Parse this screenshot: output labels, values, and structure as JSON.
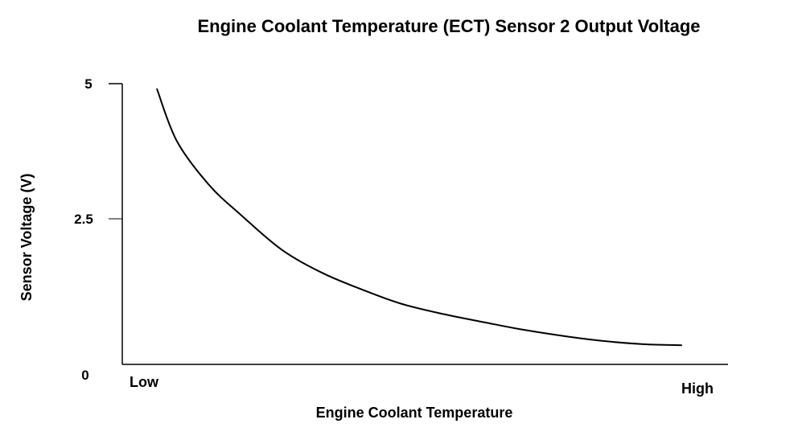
{
  "chart_data": {
    "type": "line",
    "title": "Engine Coolant Temperature (ECT) Sensor 2 Output Voltage",
    "xlabel": "Engine Coolant Temperature",
    "ylabel": "Sensor Voltage (V)",
    "x_tick_labels": {
      "low": "Low",
      "high": "High"
    },
    "y_ticks": [
      {
        "value": 5,
        "label": "5"
      },
      {
        "value": 2.5,
        "label": "2.5"
      },
      {
        "value": 0,
        "label": "0"
      }
    ],
    "xlim": [
      0,
      100
    ],
    "ylim": [
      0,
      5
    ],
    "grid": false,
    "series": [
      {
        "name": "Sensor Voltage",
        "x": [
          5.7,
          9.0,
          14.3,
          19.7,
          26.3,
          33,
          39.6,
          46,
          52.9,
          60,
          66.1,
          73,
          79.4,
          86,
          92.4
        ],
        "y": [
          4.91,
          3.94,
          3.13,
          2.56,
          1.93,
          1.5,
          1.19,
          0.93,
          0.74,
          0.58,
          0.45,
          0.33,
          0.24,
          0.18,
          0.16
        ]
      }
    ]
  }
}
